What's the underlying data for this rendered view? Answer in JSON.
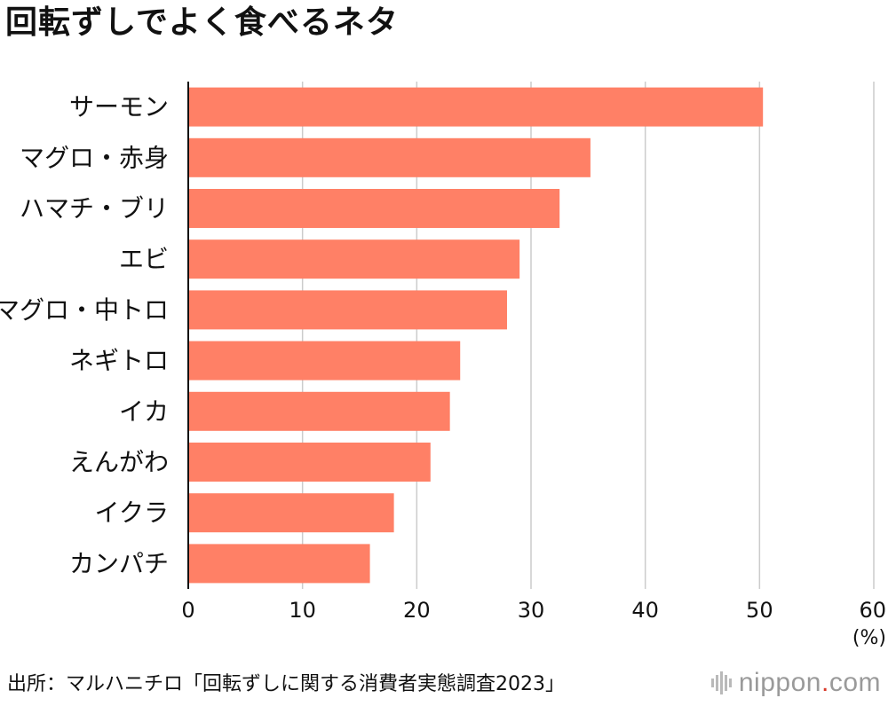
{
  "chart_data": {
    "type": "bar",
    "orientation": "horizontal",
    "title": "回転ずしでよく食べるネタ",
    "categories": [
      "サーモン",
      "マグロ・赤身",
      "ハマチ・ブリ",
      "エビ",
      "マグロ・中トロ",
      "ネギトロ",
      "イカ",
      "えんがわ",
      "イクラ",
      "カンパチ"
    ],
    "values": [
      50.3,
      35.2,
      32.5,
      29.0,
      27.9,
      23.8,
      22.9,
      21.2,
      18.0,
      15.9
    ],
    "xlim": [
      0,
      60
    ],
    "xticks": [
      0,
      10,
      20,
      30,
      40,
      50,
      60
    ],
    "xlabel": "(%)",
    "ylabel": "",
    "grid": true,
    "bar_color": "#ff8066",
    "grid_color": "#cccccc"
  },
  "source": "出所：マルハニチロ「回転ずしに関する消費者実態調査2023」",
  "logo": {
    "name": "nippon",
    "dot": ".",
    "suffix": "com"
  }
}
